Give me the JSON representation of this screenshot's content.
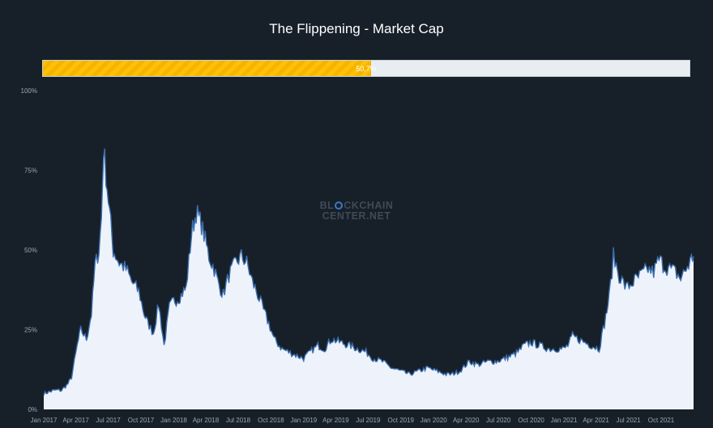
{
  "title": "The Flippening - Market Cap",
  "progress": {
    "label": "50,7%",
    "value": 0.507,
    "fill_color": "#ffc107",
    "track_color": "#e8edf2"
  },
  "watermark": {
    "line1_a": "BL",
    "line1_b": "CKCHAIN",
    "line2": "CENTER.NET",
    "icon": "chain-link-icon"
  },
  "chart_data": {
    "type": "area",
    "title": "The Flippening - Market Cap",
    "xlabel": "",
    "ylabel": "",
    "ylim": [
      0,
      100
    ],
    "yticks": [
      0,
      25,
      50,
      75,
      100
    ],
    "ytick_labels": [
      "0%",
      "25%",
      "50%",
      "75%",
      "100%"
    ],
    "xlim": [
      "2017-01-01",
      "2021-12-31"
    ],
    "xticks": [
      "2017-01-01",
      "2017-04-01",
      "2017-07-01",
      "2017-10-01",
      "2018-01-01",
      "2018-04-01",
      "2018-07-01",
      "2018-10-01",
      "2019-01-01",
      "2019-04-01",
      "2019-07-01",
      "2019-10-01",
      "2020-01-01",
      "2020-04-01",
      "2020-07-01",
      "2020-10-01",
      "2021-01-01",
      "2021-04-01",
      "2021-07-01",
      "2021-10-01"
    ],
    "xtick_labels": [
      "Jan 2017",
      "Apr 2017",
      "Jul 2017",
      "Oct 2017",
      "Jan 2018",
      "Apr 2018",
      "Jul 2018",
      "Oct 2018",
      "Jan 2019",
      "Apr 2019",
      "Jul 2019",
      "Oct 2019",
      "Jan 2020",
      "Apr 2020",
      "Jul 2020",
      "Oct 2020",
      "Jan 2021",
      "Apr 2021",
      "Jul 2021",
      "Oct 2021"
    ],
    "grid": false,
    "line_color": "#3d6fb0",
    "fill_color": "#eef3fb",
    "series": [
      {
        "x": [
          "2017-01-01",
          "2017-02-01",
          "2017-02-20",
          "2017-03-10",
          "2017-03-20",
          "2017-04-05",
          "2017-04-15",
          "2017-05-01",
          "2017-05-15",
          "2017-05-25",
          "2017-06-05",
          "2017-06-12",
          "2017-06-18",
          "2017-06-28",
          "2017-07-15",
          "2017-08-01",
          "2017-08-20",
          "2017-09-05",
          "2017-09-25",
          "2017-10-10",
          "2017-10-20",
          "2017-11-05",
          "2017-11-20",
          "2017-12-05",
          "2017-12-20",
          "2018-01-01",
          "2018-01-15",
          "2018-02-05",
          "2018-02-20",
          "2018-03-05",
          "2018-03-20",
          "2018-04-10",
          "2018-04-25",
          "2018-05-05",
          "2018-05-20",
          "2018-06-05",
          "2018-06-25",
          "2018-07-10",
          "2018-07-25",
          "2018-08-10",
          "2018-08-25",
          "2018-09-10",
          "2018-09-25",
          "2018-10-10",
          "2018-11-01",
          "2018-11-20",
          "2018-12-10",
          "2019-01-01",
          "2019-01-20",
          "2019-02-10",
          "2019-03-01",
          "2019-03-20",
          "2019-04-15",
          "2019-05-10",
          "2019-06-01",
          "2019-06-25",
          "2019-07-15",
          "2019-08-10",
          "2019-09-05",
          "2019-10-01",
          "2019-10-25",
          "2019-11-20",
          "2019-12-15",
          "2020-01-10",
          "2020-02-05",
          "2020-02-20",
          "2020-03-15",
          "2020-04-10",
          "2020-05-05",
          "2020-06-01",
          "2020-06-25",
          "2020-07-20",
          "2020-08-10",
          "2020-08-25",
          "2020-09-10",
          "2020-10-01",
          "2020-10-25",
          "2020-11-20",
          "2020-12-10",
          "2021-01-01",
          "2021-01-12",
          "2021-01-25",
          "2021-02-10",
          "2021-03-01",
          "2021-03-20",
          "2021-04-10",
          "2021-04-25",
          "2021-05-08",
          "2021-05-20",
          "2021-06-05",
          "2021-06-25",
          "2021-07-15",
          "2021-08-05",
          "2021-08-25",
          "2021-09-10",
          "2021-09-25",
          "2021-10-10",
          "2021-10-25",
          "2021-11-10",
          "2021-11-25",
          "2021-12-10",
          "2021-12-25",
          "2021-12-31"
        ],
        "y": [
          5,
          6,
          6,
          8,
          10,
          20,
          25,
          22,
          30,
          45,
          50,
          60,
          82,
          70,
          50,
          46,
          44,
          40,
          37,
          30,
          27,
          24,
          33,
          20,
          32,
          34,
          35,
          38,
          55,
          62,
          58,
          48,
          44,
          40,
          36,
          42,
          46,
          48,
          46,
          40,
          36,
          31,
          27,
          22,
          19,
          18,
          17,
          16,
          18,
          20,
          19,
          22,
          21,
          20,
          19,
          18,
          16,
          15,
          13,
          12,
          11,
          12,
          13,
          12,
          11,
          11,
          12,
          15,
          14,
          15,
          15,
          16,
          17,
          18,
          20,
          21,
          20,
          19,
          19,
          19,
          20,
          23,
          22,
          21,
          20,
          19,
          27,
          35,
          48,
          42,
          38,
          40,
          42,
          44,
          43,
          47,
          45,
          44,
          43,
          41,
          44,
          47,
          48
        ]
      }
    ]
  }
}
